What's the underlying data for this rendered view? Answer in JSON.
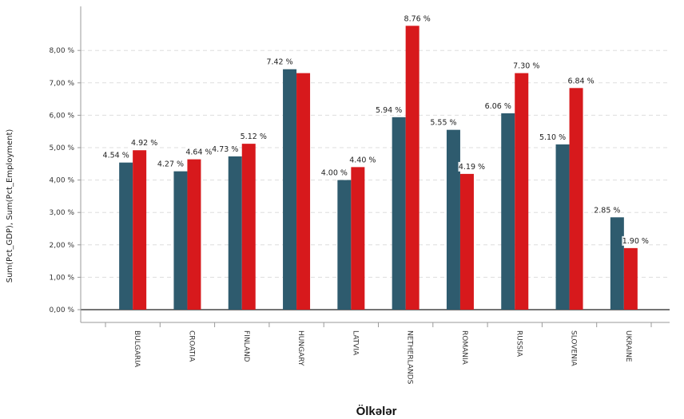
{
  "chart_data": {
    "type": "bar",
    "title": "",
    "xlabel": "Ölkələr",
    "ylabel": "Sum(Pct_GDP), Sum(Pct_Employment)",
    "ylim": [
      0,
      9
    ],
    "yticks": [
      "0,00 %",
      "1,00 %",
      "2,00 %",
      "3,00 %",
      "4,00 %",
      "5,00 %",
      "6,00 %",
      "7,00 %",
      "8,00 %"
    ],
    "grid": true,
    "legend": "none",
    "categories": [
      "BULGARIA",
      "CROATIA",
      "FINLAND",
      "HUNGARY",
      "LATVIA",
      "NETHERLANDS",
      "ROMANIA",
      "RUSSIA",
      "SLOVENIA",
      "UKRAINE"
    ],
    "series": [
      {
        "color": "#2e5b6e",
        "values": [
          4.54,
          4.27,
          4.73,
          7.42,
          4.0,
          5.94,
          5.55,
          6.06,
          5.1,
          2.85
        ],
        "labels": [
          "4.54 %",
          "4.27 %",
          "4.73 %",
          "7.42 %",
          "4.00 %",
          "5.94 %",
          "5.55 %",
          "6.06 %",
          "5.10 %",
          "2.85 %"
        ]
      },
      {
        "color": "#d7191c",
        "values": [
          4.92,
          4.64,
          5.12,
          7.3,
          4.4,
          8.76,
          4.19,
          7.3,
          6.84,
          1.9
        ],
        "labels": [
          "4.92 %",
          "4.64 %",
          "5.12 %",
          "",
          "4.40 %",
          "8.76 %",
          "4.19 %",
          "7.30 %",
          "6.84 %",
          "1.90 %"
        ]
      }
    ]
  }
}
